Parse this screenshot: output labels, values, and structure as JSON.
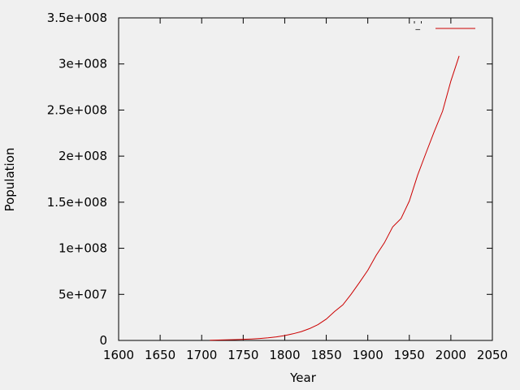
{
  "chart_data": {
    "type": "line",
    "title": "",
    "xlabel": "Year",
    "ylabel": "Population",
    "xlim": [
      1600,
      2050
    ],
    "ylim": [
      0,
      350000000
    ],
    "x_ticks": [
      1600,
      1650,
      1700,
      1750,
      1800,
      1850,
      1900,
      1950,
      2000,
      2050
    ],
    "x_tick_labels": [
      "1600",
      "1650",
      "1700",
      "1750",
      "1800",
      "1850",
      "1900",
      "1950",
      "2000",
      "2050"
    ],
    "y_ticks": [
      0,
      50000000,
      100000000,
      150000000,
      200000000,
      250000000,
      300000000,
      350000000
    ],
    "y_tick_labels": [
      "0",
      "5e+007",
      "1e+008",
      "1.5e+008",
      "2e+008",
      "2.5e+008",
      "3e+008",
      "3.5e+008"
    ],
    "grid": false,
    "legend_position": "top-right",
    "series": [
      {
        "name": "'_'",
        "color": "#cc0000",
        "x": [
          1710,
          1720,
          1730,
          1740,
          1750,
          1760,
          1770,
          1780,
          1790,
          1800,
          1810,
          1820,
          1830,
          1840,
          1850,
          1860,
          1870,
          1880,
          1890,
          1900,
          1910,
          1920,
          1930,
          1940,
          1950,
          1960,
          1970,
          1980,
          1990,
          2000,
          2010
        ],
        "y": [
          300000,
          450000,
          600000,
          900000,
          1200000,
          1600000,
          2100000,
          2800000,
          3900000,
          5300000,
          7200000,
          9600000,
          12900000,
          17100000,
          23200000,
          31400000,
          38600000,
          50200000,
          62900000,
          76200000,
          92200000,
          106000000,
          123200000,
          132200000,
          151300000,
          179300000,
          203200000,
          226500000,
          248700000,
          281400000,
          308700000
        ]
      }
    ]
  }
}
